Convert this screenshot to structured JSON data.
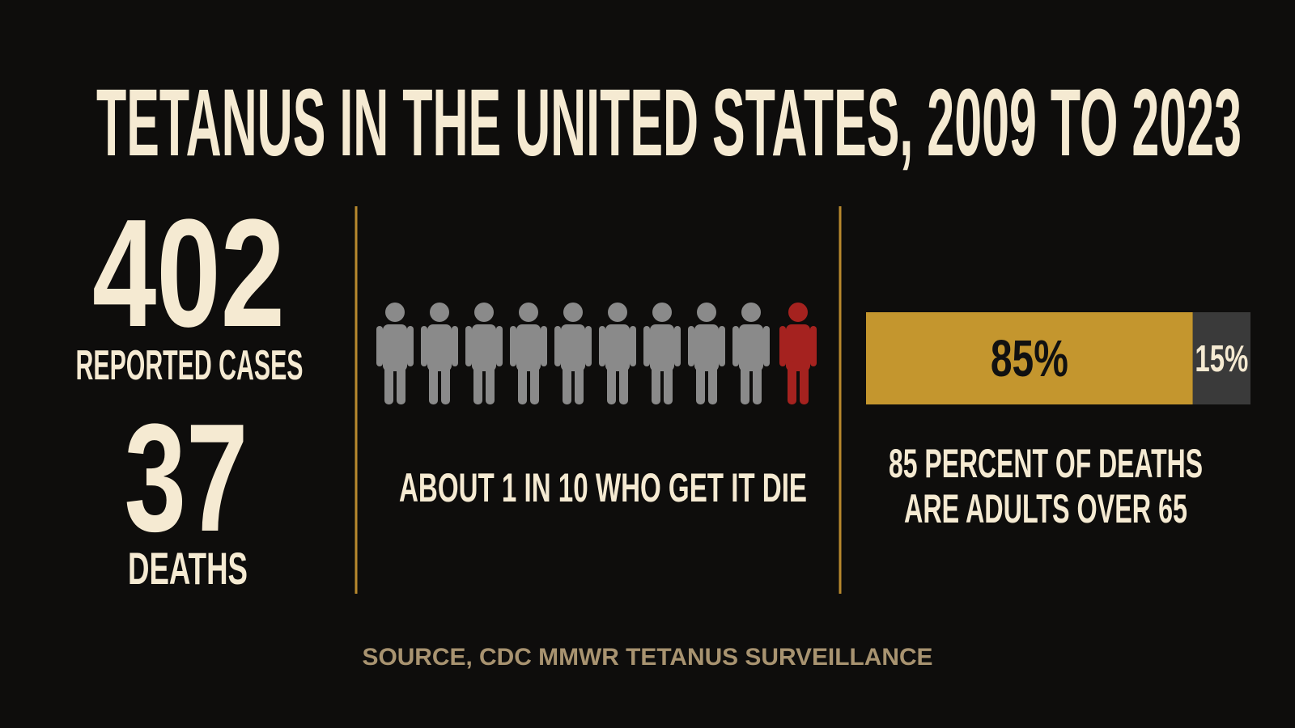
{
  "title": "TETANUS IN THE UNITED STATES, 2009 TO 2023",
  "stats": [
    {
      "value": "402",
      "label": "REPORTED CASES"
    },
    {
      "value": "37",
      "label": "DEATHS"
    }
  ],
  "pictogram": {
    "caption": "ABOUT 1 IN 10 WHO GET IT DIE"
  },
  "share_bar": {
    "values": [
      85,
      15
    ],
    "value_labels": [
      "85%",
      "15%"
    ],
    "colors": [
      "#c4962e",
      "#3a3a3a"
    ],
    "caption": [
      "85 PERCENT OF DEATHS",
      "ARE ADULTS OVER 65"
    ]
  },
  "source": "SOURCE, CDC MMWR TETANUS SURVEILLANCE"
}
